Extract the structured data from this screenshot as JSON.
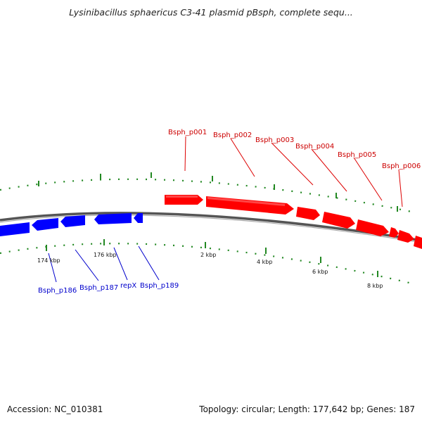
{
  "title": "Lysinibacillus sphaericus C3-41 plasmid pBsph, complete sequ...",
  "footer": {
    "accession": "Accession: NC_010381",
    "summary": "Topology: circular; Length: 177,642 bp; Genes: 187"
  },
  "colors": {
    "forward": "#ff0000",
    "reverse": "#0000ff",
    "forward_label": "#cc0000",
    "reverse_label": "#0000cc",
    "ticks": "#228822",
    "backbone": "#777777"
  },
  "genes": {
    "forward": [
      {
        "label": "Bsph_p001"
      },
      {
        "label": "Bsph_p002"
      },
      {
        "label": "Bsph_p003"
      },
      {
        "label": "Bsph_p004"
      },
      {
        "label": "Bsph_p005"
      },
      {
        "label": "Bsph_p006"
      }
    ],
    "reverse": [
      {
        "label": "Bsph_p186"
      },
      {
        "label": "Bsph_p187"
      },
      {
        "label": "repX"
      },
      {
        "label": "Bsph_p189"
      }
    ]
  },
  "scale_labels": [
    "174 kbp",
    "176 kbp",
    "2 kbp",
    "4 kbp",
    "6 kbp",
    "8 kbp"
  ]
}
